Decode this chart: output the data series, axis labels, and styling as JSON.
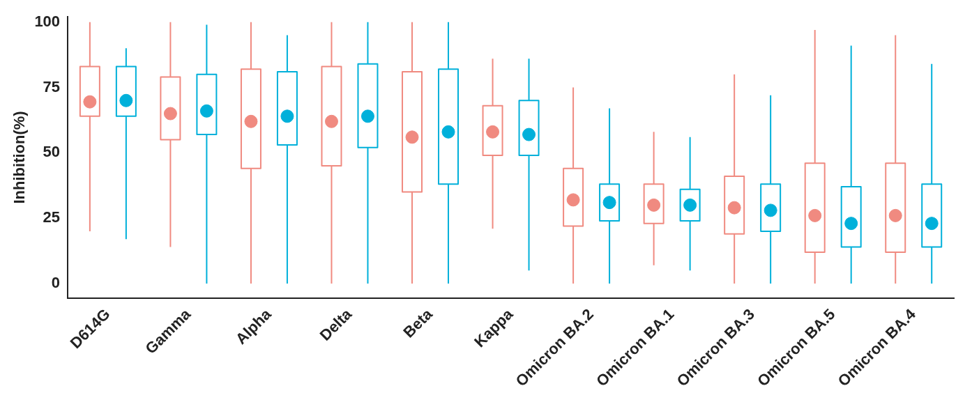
{
  "chart_data": {
    "type": "box",
    "ylabel": "Inhibition(%)",
    "categories": [
      "D614G",
      "Gamma",
      "Alpha",
      "Delta",
      "Beta",
      "Kappa",
      "Omicron BA.2",
      "Omicron BA.1",
      "Omicron BA.3",
      "Omicron BA.5",
      "Omicron BA.4"
    ],
    "ylim": [
      -5.5,
      102
    ],
    "yticks": [
      0,
      25,
      50,
      75,
      100
    ],
    "grid": false,
    "legend": false,
    "series": [
      {
        "color": "#f08a80",
        "boxes": [
          {
            "low": 20,
            "q1": 64,
            "median": 69.5,
            "q3": 83,
            "high": 100
          },
          {
            "low": 14,
            "q1": 55,
            "median": 65,
            "q3": 79,
            "high": 100
          },
          {
            "low": 0,
            "q1": 44,
            "median": 62,
            "q3": 82,
            "high": 100
          },
          {
            "low": 0,
            "q1": 45,
            "median": 62,
            "q3": 83,
            "high": 100
          },
          {
            "low": 0,
            "q1": 35,
            "median": 56,
            "q3": 81,
            "high": 100
          },
          {
            "low": 21,
            "q1": 49,
            "median": 58,
            "q3": 68,
            "high": 86
          },
          {
            "low": 0,
            "q1": 22,
            "median": 32,
            "q3": 44,
            "high": 75
          },
          {
            "low": 7,
            "q1": 23,
            "median": 30,
            "q3": 38,
            "high": 58
          },
          {
            "low": 0,
            "q1": 19,
            "median": 29,
            "q3": 41,
            "high": 80
          },
          {
            "low": 0,
            "q1": 12,
            "median": 26,
            "q3": 46,
            "high": 97
          },
          {
            "low": 0,
            "q1": 12,
            "median": 26,
            "q3": 46,
            "high": 95
          }
        ]
      },
      {
        "color": "#00b0da",
        "boxes": [
          {
            "low": 17,
            "q1": 64,
            "median": 70,
            "q3": 83,
            "high": 90
          },
          {
            "low": 0,
            "q1": 57,
            "median": 66,
            "q3": 80,
            "high": 99
          },
          {
            "low": 0,
            "q1": 53,
            "median": 64,
            "q3": 81,
            "high": 95
          },
          {
            "low": 0,
            "q1": 52,
            "median": 64,
            "q3": 84,
            "high": 100
          },
          {
            "low": 0,
            "q1": 38,
            "median": 58,
            "q3": 82,
            "high": 100
          },
          {
            "low": 5,
            "q1": 49,
            "median": 57,
            "q3": 70,
            "high": 86
          },
          {
            "low": 0,
            "q1": 24,
            "median": 31,
            "q3": 38,
            "high": 67
          },
          {
            "low": 5,
            "q1": 24,
            "median": 30,
            "q3": 36,
            "high": 56
          },
          {
            "low": 0,
            "q1": 20,
            "median": 28,
            "q3": 38,
            "high": 72
          },
          {
            "low": 0,
            "q1": 14,
            "median": 23,
            "q3": 37,
            "high": 91
          },
          {
            "low": 0,
            "q1": 14,
            "median": 23,
            "q3": 38,
            "high": 84
          }
        ]
      }
    ]
  }
}
